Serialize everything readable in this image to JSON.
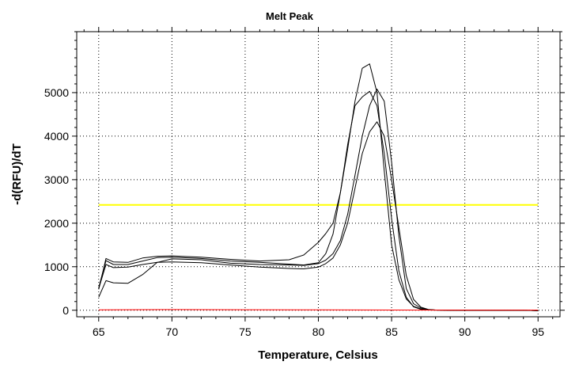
{
  "chart_data": {
    "type": "line",
    "title": "Melt Peak",
    "xlabel": "Temperature, Celsius",
    "ylabel": "-d(RFU)/dT",
    "xlim": [
      63.5,
      96.5
    ],
    "ylim": [
      -150,
      6400
    ],
    "xticks": [
      65,
      70,
      75,
      80,
      85,
      90,
      95
    ],
    "yticks": [
      0,
      1000,
      2000,
      3000,
      4000,
      5000
    ],
    "grid": true,
    "threshold": {
      "value": 2420,
      "x_range": [
        65,
        95
      ],
      "color": "#ffff00"
    },
    "series": [
      {
        "color": "#000000",
        "x": [
          65,
          65.5,
          66,
          67,
          68,
          69,
          70,
          72,
          74,
          76,
          78,
          79,
          80,
          80.5,
          81,
          81.5,
          82,
          82.5,
          83,
          83.5,
          84,
          84.5,
          85,
          85.5,
          86,
          86.5,
          87,
          87.5,
          88,
          89,
          90,
          92,
          94,
          95
        ],
        "y": [
          480,
          1190,
          1110,
          1100,
          1200,
          1240,
          1250,
          1220,
          1170,
          1130,
          1160,
          1270,
          1560,
          1760,
          2000,
          2700,
          3700,
          4800,
          5560,
          5660,
          5000,
          3200,
          1500,
          700,
          260,
          90,
          30,
          10,
          5,
          2,
          0,
          0,
          0,
          -10
        ]
      },
      {
        "color": "#000000",
        "x": [
          65,
          65.5,
          66,
          67,
          68,
          69,
          70,
          72,
          74,
          76,
          78,
          79,
          80,
          80.5,
          81,
          81.5,
          82,
          82.5,
          83,
          83.5,
          84,
          84.5,
          85,
          85.5,
          86,
          86.5,
          87,
          87.5,
          88,
          89,
          90,
          92,
          94,
          95
        ],
        "y": [
          520,
          1140,
          1050,
          1050,
          1130,
          1210,
          1220,
          1190,
          1130,
          1100,
          1060,
          1040,
          1090,
          1300,
          1750,
          2700,
          3800,
          4700,
          4900,
          5030,
          4700,
          3600,
          2100,
          900,
          300,
          80,
          20,
          5,
          2,
          0,
          0,
          0,
          0,
          -10
        ]
      },
      {
        "color": "#000000",
        "x": [
          65,
          65.5,
          66,
          67,
          68,
          69,
          70,
          72,
          74,
          76,
          78,
          79,
          80,
          80.5,
          81,
          81.5,
          82,
          82.5,
          83,
          83.5,
          84,
          84.5,
          85,
          85.5,
          86,
          86.5,
          87,
          87.5,
          88,
          89,
          90,
          92,
          94,
          95
        ],
        "y": [
          300,
          680,
          630,
          620,
          820,
          1100,
          1180,
          1160,
          1080,
          1050,
          1040,
          1030,
          1070,
          1150,
          1300,
          1600,
          2200,
          3100,
          4000,
          4700,
          5080,
          4800,
          3400,
          1700,
          500,
          150,
          50,
          15,
          5,
          0,
          0,
          0,
          0,
          -10
        ]
      },
      {
        "color": "#000000",
        "x": [
          65,
          65.5,
          66,
          67,
          68,
          69,
          70,
          72,
          74,
          76,
          78,
          79,
          80,
          80.5,
          81,
          81.5,
          82,
          82.5,
          83,
          83.5,
          84,
          84.5,
          85,
          85.5,
          86,
          86.5,
          87,
          87.5,
          88,
          89,
          90,
          92,
          94,
          95
        ],
        "y": [
          500,
          1050,
          980,
          990,
          1050,
          1100,
          1110,
          1090,
          1040,
          990,
          960,
          950,
          990,
          1070,
          1200,
          1500,
          2000,
          2800,
          3600,
          4100,
          4330,
          4000,
          3000,
          1900,
          800,
          250,
          70,
          20,
          5,
          0,
          0,
          0,
          0,
          -10
        ]
      },
      {
        "color": "#ff0000",
        "x": [
          65,
          70,
          75,
          80,
          85,
          90,
          95
        ],
        "y": [
          10,
          15,
          12,
          8,
          5,
          3,
          2
        ]
      }
    ]
  }
}
